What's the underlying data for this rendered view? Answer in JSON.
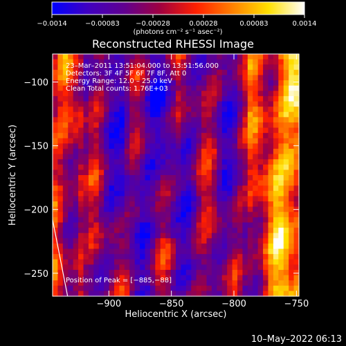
{
  "chart_data": {
    "type": "heatmap",
    "title": "Reconstructed RHESSI Image",
    "xlabel": "Heliocentric X (arcsec)",
    "ylabel": "Heliocentric Y (arcsec)",
    "xlim": [
      -945,
      -748
    ],
    "ylim": [
      -268,
      -78
    ],
    "xticks": [
      -900,
      -850,
      -800,
      -750
    ],
    "yticks": [
      -100,
      -150,
      -200,
      -250
    ],
    "xtick_labels": [
      "−900",
      "−850",
      "−800",
      "−750"
    ],
    "ytick_labels": [
      "−100",
      "−150",
      "−200",
      "−250"
    ],
    "colorbar": {
      "range": [
        -0.0014,
        0.0014
      ],
      "tick_labels": [
        "−0.0014",
        "−0.00083",
        "−0.00028",
        "0.00028",
        "0.00083",
        "0.0014"
      ],
      "unit": "(photons cm⁻² s⁻¹ asec⁻²)",
      "colormap": [
        "#0000ff",
        "#4000c0",
        "#600090",
        "#a00040",
        "#ff2000",
        "#ff8000",
        "#ffe000",
        "#ffffff"
      ]
    },
    "annotations": [
      "23–Mar–2011 13:51:04.000 to 13:51:56.000",
      "Detectors: 3F 4F 5F 6F 7F 8F, Att 0",
      "Energy Range: 12.0 – 25.0 keV",
      "Clean     Total counts: 1.76E+03"
    ],
    "peak_label": "Position of Peak = [−885,−88]",
    "limb_line": [
      [
        -945,
        -208
      ],
      [
        -933,
        -268
      ]
    ]
  },
  "footer": {
    "timestamp": "10–May–2022 06:13"
  }
}
